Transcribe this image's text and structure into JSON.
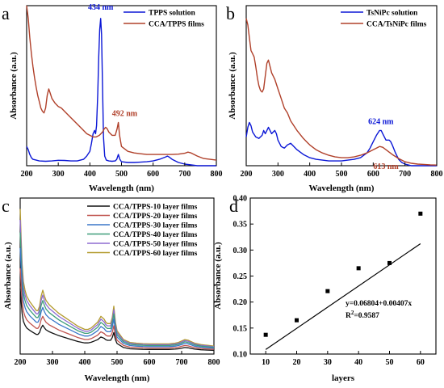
{
  "chart_data": [
    {
      "type": "line",
      "panel": "a",
      "xlabel": "Wavelength (nm)",
      "ylabel": "Absorbance (a.u.)",
      "xlim": [
        200,
        800
      ],
      "ylim": [
        0,
        1
      ],
      "xticks": [
        200,
        300,
        400,
        500,
        600,
        700,
        800
      ],
      "show_yticks": false,
      "legend_position": "top-right",
      "series": [
        {
          "name": "TPPS solution",
          "color": "#0b17d6",
          "x": [
            200,
            205,
            210,
            215,
            220,
            230,
            240,
            260,
            280,
            300,
            320,
            340,
            360,
            380,
            390,
            400,
            405,
            410,
            415,
            418,
            421,
            425,
            428,
            431,
            434,
            437,
            440,
            443,
            447,
            452,
            460,
            470,
            480,
            485,
            490,
            495,
            500,
            520,
            540,
            560,
            580,
            600,
            620,
            640,
            645,
            650,
            660,
            680,
            700,
            720,
            740,
            760,
            780,
            800
          ],
          "y": [
            0.12,
            0.1,
            0.07,
            0.05,
            0.04,
            0.035,
            0.03,
            0.028,
            0.03,
            0.034,
            0.033,
            0.03,
            0.03,
            0.04,
            0.06,
            0.09,
            0.14,
            0.2,
            0.22,
            0.2,
            0.25,
            0.45,
            0.68,
            0.85,
            0.92,
            0.82,
            0.5,
            0.18,
            0.06,
            0.035,
            0.03,
            0.028,
            0.03,
            0.04,
            0.07,
            0.04,
            0.025,
            0.02,
            0.02,
            0.022,
            0.025,
            0.03,
            0.04,
            0.055,
            0.06,
            0.055,
            0.04,
            0.02,
            0.01,
            0.005,
            0.0,
            0.0,
            0.0,
            0.0
          ]
        },
        {
          "name": "CCA/TPPS films",
          "color": "#b0402a",
          "x": [
            200,
            205,
            210,
            215,
            220,
            225,
            230,
            235,
            240,
            245,
            250,
            255,
            260,
            265,
            270,
            275,
            280,
            290,
            300,
            310,
            320,
            340,
            360,
            380,
            390,
            400,
            410,
            420,
            430,
            440,
            445,
            450,
            455,
            460,
            470,
            480,
            486,
            490,
            494,
            500,
            520,
            540,
            560,
            580,
            600,
            620,
            640,
            660,
            680,
            700,
            710,
            720,
            740,
            760,
            780,
            800
          ],
          "y": [
            1.0,
            0.92,
            0.8,
            0.7,
            0.62,
            0.55,
            0.49,
            0.44,
            0.4,
            0.36,
            0.34,
            0.33,
            0.36,
            0.44,
            0.48,
            0.45,
            0.42,
            0.39,
            0.37,
            0.36,
            0.34,
            0.3,
            0.26,
            0.22,
            0.2,
            0.19,
            0.18,
            0.18,
            0.19,
            0.21,
            0.23,
            0.24,
            0.23,
            0.21,
            0.19,
            0.19,
            0.23,
            0.27,
            0.19,
            0.12,
            0.09,
            0.08,
            0.075,
            0.07,
            0.07,
            0.07,
            0.07,
            0.07,
            0.072,
            0.078,
            0.085,
            0.08,
            0.06,
            0.045,
            0.04,
            0.035
          ]
        }
      ],
      "annotations": [
        {
          "text": "434 nm",
          "x": 434,
          "y": 0.975,
          "color": "#0b17d6"
        },
        {
          "text": "492 nm",
          "x": 510,
          "y": 0.31,
          "color": "#b0402a"
        }
      ]
    },
    {
      "type": "line",
      "panel": "b",
      "xlabel": "Wavelength (nm)",
      "ylabel": "Absorbance (a.u.)",
      "xlim": [
        200,
        800
      ],
      "ylim": [
        0,
        1
      ],
      "xticks": [
        200,
        300,
        400,
        500,
        600,
        700,
        800
      ],
      "show_yticks": false,
      "legend_position": "top-right",
      "series": [
        {
          "name": "TsNiPc solution",
          "color": "#0b17d6",
          "x": [
            200,
            205,
            210,
            215,
            220,
            230,
            240,
            250,
            255,
            260,
            265,
            270,
            275,
            280,
            285,
            290,
            295,
            300,
            310,
            320,
            330,
            340,
            350,
            360,
            380,
            400,
            420,
            440,
            460,
            480,
            500,
            520,
            540,
            560,
            580,
            590,
            600,
            610,
            620,
            625,
            630,
            640,
            650,
            655,
            660,
            670,
            680,
            690,
            700,
            720,
            740,
            760,
            780,
            800
          ],
          "y": [
            0.18,
            0.24,
            0.27,
            0.25,
            0.21,
            0.18,
            0.17,
            0.19,
            0.22,
            0.2,
            0.22,
            0.24,
            0.22,
            0.2,
            0.21,
            0.22,
            0.2,
            0.16,
            0.12,
            0.11,
            0.13,
            0.14,
            0.12,
            0.1,
            0.07,
            0.05,
            0.04,
            0.035,
            0.03,
            0.03,
            0.03,
            0.035,
            0.04,
            0.05,
            0.08,
            0.11,
            0.15,
            0.19,
            0.22,
            0.22,
            0.2,
            0.16,
            0.16,
            0.15,
            0.13,
            0.08,
            0.04,
            0.02,
            0.01,
            0.0,
            0.0,
            0.0,
            0.0,
            0.0
          ]
        },
        {
          "name": "CCA/TsNiPc films",
          "color": "#b0402a",
          "x": [
            200,
            205,
            210,
            215,
            220,
            225,
            230,
            235,
            240,
            245,
            250,
            255,
            260,
            265,
            270,
            275,
            280,
            290,
            300,
            310,
            320,
            330,
            340,
            360,
            380,
            400,
            420,
            440,
            460,
            480,
            500,
            520,
            540,
            560,
            580,
            600,
            610,
            620,
            630,
            640,
            660,
            680,
            700,
            720,
            740,
            760,
            780,
            800
          ],
          "y": [
            0.92,
            0.88,
            0.8,
            0.72,
            0.7,
            0.68,
            0.62,
            0.55,
            0.5,
            0.47,
            0.46,
            0.48,
            0.56,
            0.64,
            0.66,
            0.62,
            0.58,
            0.54,
            0.48,
            0.42,
            0.36,
            0.33,
            0.28,
            0.22,
            0.17,
            0.13,
            0.1,
            0.08,
            0.065,
            0.055,
            0.05,
            0.05,
            0.055,
            0.065,
            0.08,
            0.1,
            0.11,
            0.12,
            0.115,
            0.1,
            0.07,
            0.045,
            0.025,
            0.015,
            0.01,
            0.008,
            0.005,
            0.004
          ]
        }
      ],
      "annotations": [
        {
          "text": "624 nm",
          "x": 624,
          "y": 0.26,
          "color": "#0b17d6"
        },
        {
          "text": "613 nm",
          "x": 640,
          "y": -0.02,
          "color": "#b0402a"
        }
      ]
    },
    {
      "type": "line",
      "panel": "c",
      "xlabel": "Wavelength (nm)",
      "ylabel": "Absorbance (a.u.)",
      "xlim": [
        200,
        800
      ],
      "ylim": [
        0,
        1
      ],
      "xticks": [
        200,
        300,
        400,
        500,
        600,
        700,
        800
      ],
      "show_yticks": false,
      "legend_position": "top-right",
      "base_shape": {
        "x": [
          200,
          203,
          206,
          210,
          215,
          220,
          225,
          230,
          240,
          250,
          255,
          260,
          265,
          270,
          275,
          280,
          290,
          300,
          310,
          320,
          340,
          360,
          380,
          400,
          410,
          420,
          430,
          440,
          445,
          450,
          455,
          460,
          465,
          470,
          480,
          485,
          490,
          495,
          500,
          520,
          540,
          560,
          580,
          600,
          620,
          640,
          660,
          680,
          690,
          700,
          710,
          720,
          730,
          740,
          760,
          780,
          800
        ],
        "y": [
          1.0,
          0.8,
          0.62,
          0.5,
          0.44,
          0.4,
          0.38,
          0.36,
          0.33,
          0.3,
          0.3,
          0.33,
          0.4,
          0.44,
          0.4,
          0.37,
          0.34,
          0.32,
          0.3,
          0.28,
          0.25,
          0.22,
          0.19,
          0.17,
          0.17,
          0.18,
          0.2,
          0.22,
          0.24,
          0.26,
          0.25,
          0.24,
          0.22,
          0.21,
          0.21,
          0.25,
          0.33,
          0.22,
          0.16,
          0.1,
          0.08,
          0.075,
          0.072,
          0.07,
          0.07,
          0.07,
          0.07,
          0.075,
          0.08,
          0.09,
          0.1,
          0.095,
          0.085,
          0.075,
          0.065,
          0.06,
          0.055
        ]
      },
      "series": [
        {
          "name": "CCA/TPPS-10 layer films",
          "color": "#111111",
          "scale": 0.42
        },
        {
          "name": "CCA/TPPS-20 layer films",
          "color": "#c0544f",
          "scale": 0.55
        },
        {
          "name": "CCA/TPPS-30 layer films",
          "color": "#3a77c9",
          "scale": 0.68
        },
        {
          "name": "CCA/TPPS-40 layer films",
          "color": "#3f9e7a",
          "scale": 0.78
        },
        {
          "name": "CCA/TPPS-50 layer films",
          "color": "#8d6bd1",
          "scale": 0.86
        },
        {
          "name": "CCA/TPPS-60 layer films",
          "color": "#b39a2d",
          "scale": 0.93
        }
      ]
    },
    {
      "type": "scatter",
      "panel": "d",
      "xlabel": "layers",
      "ylabel": "Absorbance (a.u.)",
      "xlim": [
        5,
        65
      ],
      "ylim": [
        0.1,
        0.4
      ],
      "xticks": [
        10,
        20,
        30,
        40,
        50,
        60
      ],
      "yticks": [
        0.1,
        0.15,
        0.2,
        0.25,
        0.3,
        0.35,
        0.4
      ],
      "ytick_labels": [
        "0.10",
        "0.15",
        "0.20",
        "0.25",
        "0.30",
        "0.35",
        "0.40"
      ],
      "x": [
        10,
        20,
        30,
        40,
        50,
        60
      ],
      "y": [
        0.137,
        0.165,
        0.221,
        0.265,
        0.275,
        0.37
      ],
      "fit": {
        "intercept": 0.06804,
        "slope": 0.00407,
        "x_range": [
          10,
          60
        ]
      },
      "fit_label": "y=0.06804+0.00407x",
      "r2_label": "R",
      "r2_sup": "2",
      "r2_value": "=0.9587"
    }
  ],
  "panel_letters": [
    "a",
    "b",
    "c",
    "d"
  ]
}
